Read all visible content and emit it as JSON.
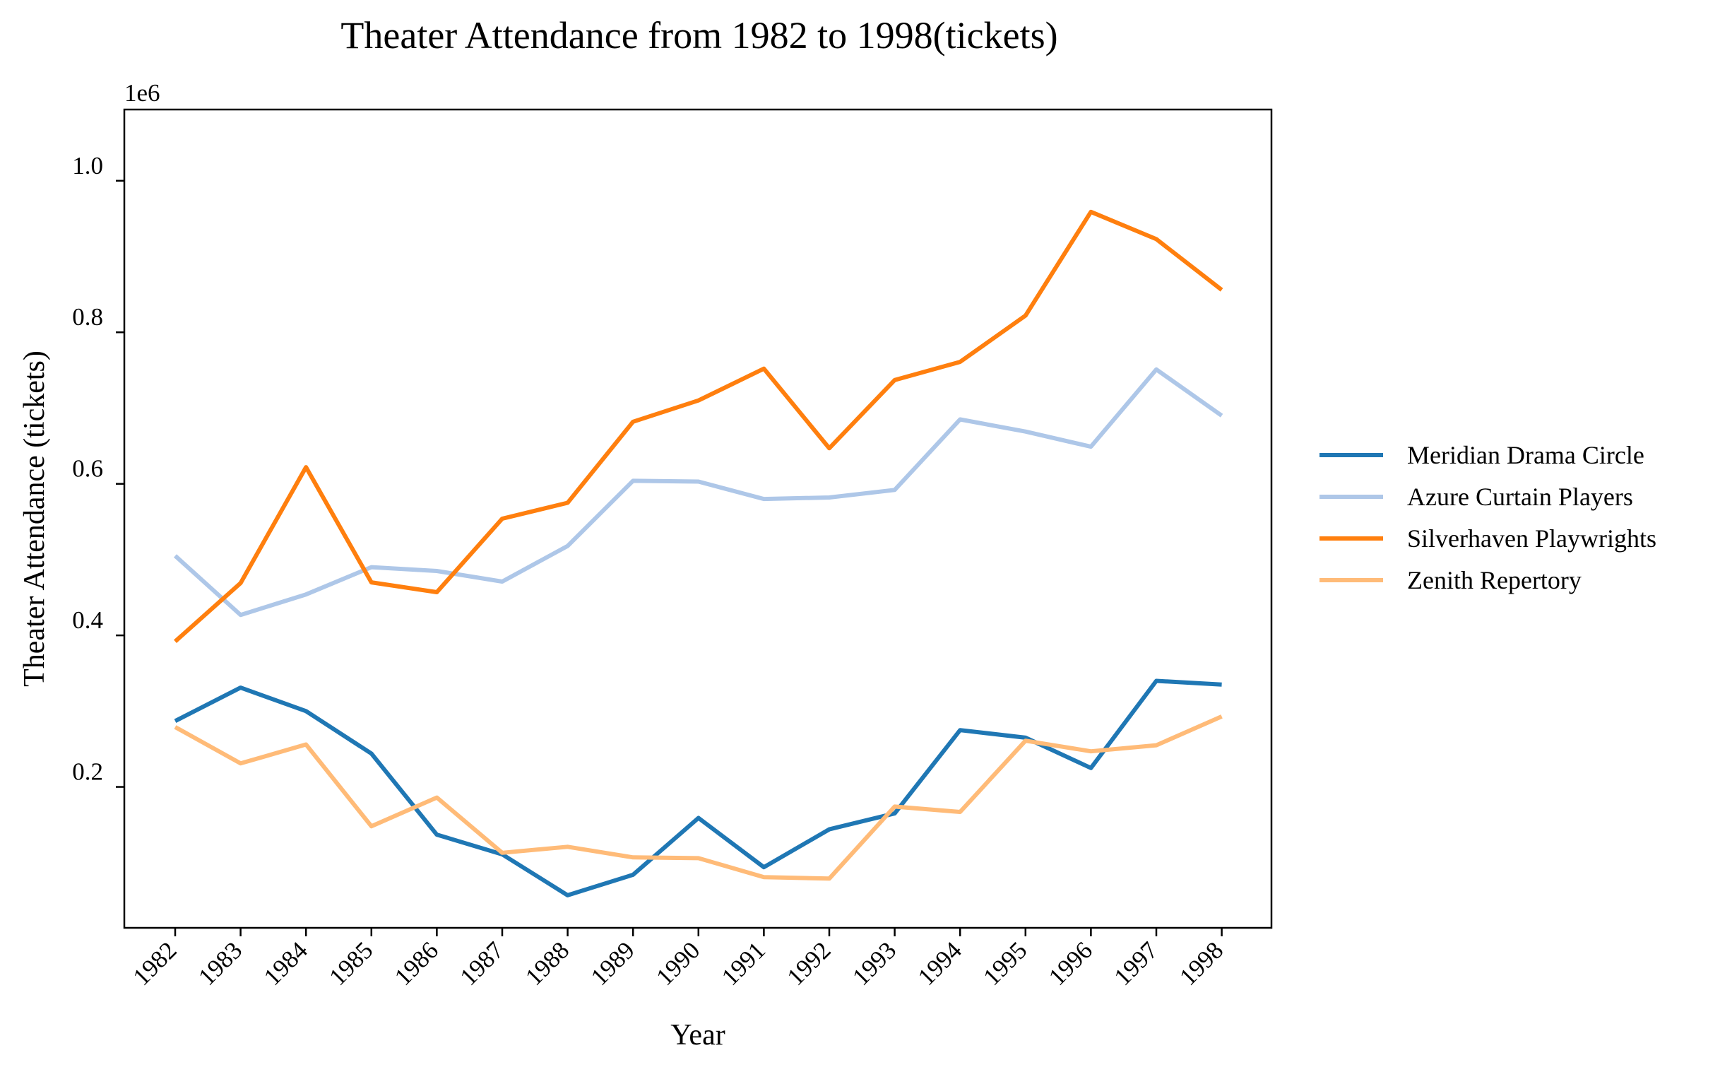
{
  "chart_data": {
    "type": "line",
    "title": "Theater Attendance from 1982 to 1998(tickets)",
    "xlabel": "Year",
    "ylabel": "Theater Attendance (tickets)",
    "y_offset_label": "1e6",
    "categories": [
      "1982",
      "1983",
      "1984",
      "1985",
      "1986",
      "1987",
      "1988",
      "1989",
      "1990",
      "1991",
      "1992",
      "1993",
      "1994",
      "1995",
      "1996",
      "1997",
      "1998"
    ],
    "yticks": [
      0.2,
      0.4,
      0.6,
      0.8,
      1.0
    ],
    "ytick_labels": [
      "0.2",
      "0.4",
      "0.6",
      "0.8",
      "1.0"
    ],
    "ylim": [
      0.014,
      1.094
    ],
    "grid": false,
    "legend_position": "right",
    "series": [
      {
        "name": "Meridian Drama Circle",
        "color": "#1f77b4",
        "values": [
          0.287,
          0.331,
          0.3,
          0.244,
          0.137,
          0.111,
          0.057,
          0.084,
          0.159,
          0.094,
          0.144,
          0.165,
          0.275,
          0.265,
          0.225,
          0.34,
          0.335
        ]
      },
      {
        "name": "Azure Curtain Players",
        "color": "#aec7e8",
        "values": [
          0.505,
          0.427,
          0.454,
          0.49,
          0.485,
          0.471,
          0.518,
          0.604,
          0.603,
          0.58,
          0.582,
          0.592,
          0.685,
          0.669,
          0.649,
          0.751,
          0.69
        ]
      },
      {
        "name": "Silverhaven Playwrights",
        "color": "#ff7f0e",
        "values": [
          0.392,
          0.469,
          0.622,
          0.47,
          0.457,
          0.554,
          0.575,
          0.682,
          0.71,
          0.752,
          0.647,
          0.737,
          0.761,
          0.822,
          0.959,
          0.923,
          0.856
        ]
      },
      {
        "name": "Zenith Repertory",
        "color": "#ffbb78",
        "values": [
          0.279,
          0.231,
          0.256,
          0.148,
          0.186,
          0.113,
          0.121,
          0.107,
          0.106,
          0.081,
          0.079,
          0.174,
          0.167,
          0.261,
          0.247,
          0.255,
          0.293
        ]
      }
    ]
  }
}
